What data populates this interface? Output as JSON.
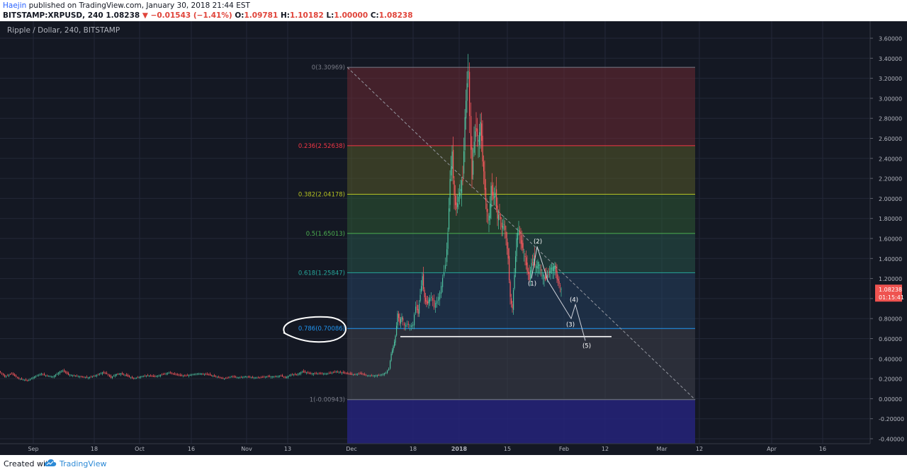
{
  "header": {
    "author": "Haejin",
    "published_text": "published on TradingView.com, January 30, 2018 21:44 EST",
    "symbol": "BITSTAMP:XRPUSD, 240",
    "last": "1.08238",
    "change": "−0.01543 (−1.41%)",
    "open_label": "O:",
    "open": "1.09781",
    "high_label": "H:",
    "high": "1.10182",
    "low_label": "L:",
    "low": "1.00000",
    "close_label": "C:",
    "close": "1.08238"
  },
  "chart_title": "Ripple / Dollar, 240, BITSTAMP",
  "colors": {
    "background": "#141823",
    "grid": "#232838",
    "axis_text": "#b2b5be",
    "candle_up": "#4fc3a1",
    "candle_down": "#ff5a5f",
    "price_tag": "#ef5350",
    "annotation": "#ffffff"
  },
  "price_tag": {
    "price": "1.08238",
    "countdown": "01:15:41"
  },
  "chart_data": {
    "type": "candlestick",
    "title": "Ripple / Dollar, 240, BITSTAMP",
    "x_ticks": [
      "Sep",
      "18",
      "Oct",
      "16",
      "Nov",
      "13",
      "Dec",
      "18",
      "2018",
      "15",
      "Feb",
      "12",
      "Mar",
      "12",
      "Apr",
      "16"
    ],
    "y_ticks": [
      "3.60000",
      "3.40000",
      "3.20000",
      "3.00000",
      "2.80000",
      "2.60000",
      "2.40000",
      "2.20000",
      "2.00000",
      "1.80000",
      "1.60000",
      "1.40000",
      "1.20000",
      "1.00000",
      "0.80000",
      "0.60000",
      "0.40000",
      "0.20000",
      "0.00000",
      "-0.20000",
      "-0.40000"
    ],
    "ylim": [
      -0.46,
      3.7
    ],
    "price_path": [
      [
        0,
        0.28
      ],
      [
        8,
        0.22
      ],
      [
        18,
        0.25
      ],
      [
        28,
        0.2
      ],
      [
        40,
        0.18
      ],
      [
        50,
        0.22
      ],
      [
        60,
        0.25
      ],
      [
        66,
        0.23
      ],
      [
        76,
        0.22
      ],
      [
        86,
        0.27
      ],
      [
        90,
        0.28
      ],
      [
        98,
        0.24
      ],
      [
        106,
        0.23
      ],
      [
        116,
        0.22
      ],
      [
        126,
        0.21
      ],
      [
        136,
        0.23
      ],
      [
        146,
        0.26
      ],
      [
        152,
        0.25
      ],
      [
        158,
        0.21
      ],
      [
        164,
        0.24
      ],
      [
        172,
        0.25
      ],
      [
        180,
        0.23
      ],
      [
        190,
        0.2
      ],
      [
        200,
        0.22
      ],
      [
        210,
        0.23
      ],
      [
        220,
        0.22
      ],
      [
        230,
        0.24
      ],
      [
        240,
        0.26
      ],
      [
        250,
        0.24
      ],
      [
        256,
        0.23
      ],
      [
        264,
        0.23
      ],
      [
        272,
        0.24
      ],
      [
        282,
        0.25
      ],
      [
        296,
        0.24
      ],
      [
        306,
        0.22
      ],
      [
        318,
        0.2
      ],
      [
        328,
        0.22
      ],
      [
        338,
        0.21
      ],
      [
        348,
        0.22
      ],
      [
        358,
        0.21
      ],
      [
        368,
        0.21
      ],
      [
        378,
        0.22
      ],
      [
        390,
        0.22
      ],
      [
        398,
        0.23
      ],
      [
        404,
        0.21
      ],
      [
        412,
        0.24
      ],
      [
        420,
        0.24
      ],
      [
        428,
        0.27
      ],
      [
        440,
        0.25
      ],
      [
        452,
        0.25
      ],
      [
        464,
        0.25
      ],
      [
        476,
        0.27
      ],
      [
        484,
        0.26
      ],
      [
        492,
        0.25
      ],
      [
        500,
        0.24
      ],
      [
        510,
        0.25
      ],
      [
        520,
        0.23
      ],
      [
        530,
        0.23
      ],
      [
        540,
        0.24
      ],
      [
        546,
        0.26
      ],
      [
        550,
        0.3
      ],
      [
        553,
        0.45
      ],
      [
        556,
        0.52
      ],
      [
        559,
        0.62
      ],
      [
        562,
        0.85
      ],
      [
        565,
        0.76
      ],
      [
        568,
        0.82
      ],
      [
        572,
        0.72
      ],
      [
        576,
        0.75
      ],
      [
        580,
        0.72
      ],
      [
        584,
        0.74
      ],
      [
        588,
        0.93
      ],
      [
        591,
        0.85
      ],
      [
        594,
        1.05
      ],
      [
        597,
        1.22
      ],
      [
        600,
        1.0
      ],
      [
        603,
        0.95
      ],
      [
        606,
        0.98
      ],
      [
        610,
        1.02
      ],
      [
        614,
        0.92
      ],
      [
        618,
        0.98
      ],
      [
        622,
        1.05
      ],
      [
        626,
        1.2
      ],
      [
        630,
        1.35
      ],
      [
        633,
        1.65
      ],
      [
        636,
        2.2
      ],
      [
        639,
        2.45
      ],
      [
        642,
        2.0
      ],
      [
        645,
        1.9
      ],
      [
        648,
        2.02
      ],
      [
        651,
        2.1
      ],
      [
        654,
        2.2
      ],
      [
        657,
        2.8
      ],
      [
        660,
        3.15
      ],
      [
        662,
        3.3
      ],
      [
        664,
        2.8
      ],
      [
        667,
        2.2
      ],
      [
        670,
        2.6
      ],
      [
        673,
        2.7
      ],
      [
        676,
        2.55
      ],
      [
        679,
        2.75
      ],
      [
        682,
        2.4
      ],
      [
        685,
        2.1
      ],
      [
        688,
        1.85
      ],
      [
        691,
        1.8
      ],
      [
        694,
        2.1
      ],
      [
        697,
        2.0
      ],
      [
        700,
        2.05
      ],
      [
        703,
        1.8
      ],
      [
        706,
        1.85
      ],
      [
        709,
        1.7
      ],
      [
        712,
        1.75
      ],
      [
        715,
        1.6
      ],
      [
        718,
        1.4
      ],
      [
        721,
        1.0
      ],
      [
        724,
        0.9
      ],
      [
        727,
        1.25
      ],
      [
        730,
        1.6
      ],
      [
        733,
        1.7
      ],
      [
        736,
        1.55
      ],
      [
        739,
        1.5
      ],
      [
        742,
        1.4
      ],
      [
        745,
        1.28
      ],
      [
        748,
        1.2
      ],
      [
        751,
        1.35
      ],
      [
        754,
        1.4
      ],
      [
        757,
        1.3
      ],
      [
        760,
        1.35
      ],
      [
        763,
        1.3
      ],
      [
        766,
        1.25
      ],
      [
        769,
        1.2
      ],
      [
        772,
        1.22
      ],
      [
        775,
        1.25
      ],
      [
        778,
        1.3
      ],
      [
        781,
        1.3
      ],
      [
        784,
        1.32
      ],
      [
        787,
        1.2
      ],
      [
        790,
        1.15
      ],
      [
        793,
        1.08
      ]
    ],
    "fibonacci": [
      {
        "label": "0(3.30969)",
        "value": 3.30969,
        "color": "#787b86"
      },
      {
        "label": "0.236(2.52638)",
        "value": 2.52638,
        "color": "#f23645"
      },
      {
        "label": "0.382(2.04178)",
        "value": 2.04178,
        "color": "#b5c123"
      },
      {
        "label": "0.5(1.65013)",
        "value": 1.65013,
        "color": "#4caf50"
      },
      {
        "label": "0.618(1.25847)",
        "value": 1.25847,
        "color": "#26a69a"
      },
      {
        "label": "0.786(0.70086)",
        "value": 0.70086,
        "color": "#2196f3"
      },
      {
        "label": "1(-0.00943)",
        "value": -0.00943,
        "color": "#787b86"
      }
    ],
    "support_level": 0.62,
    "wave_labels": [
      {
        "label": "(1)",
        "price": 1.15
      },
      {
        "label": "(2)",
        "price": 1.57
      },
      {
        "label": "(3)",
        "price": 0.74
      },
      {
        "label": "(4)",
        "price": 0.99
      },
      {
        "label": "(5)",
        "price": 0.53
      }
    ]
  },
  "footer": {
    "created": "Created with",
    "brand": "TradingView"
  }
}
